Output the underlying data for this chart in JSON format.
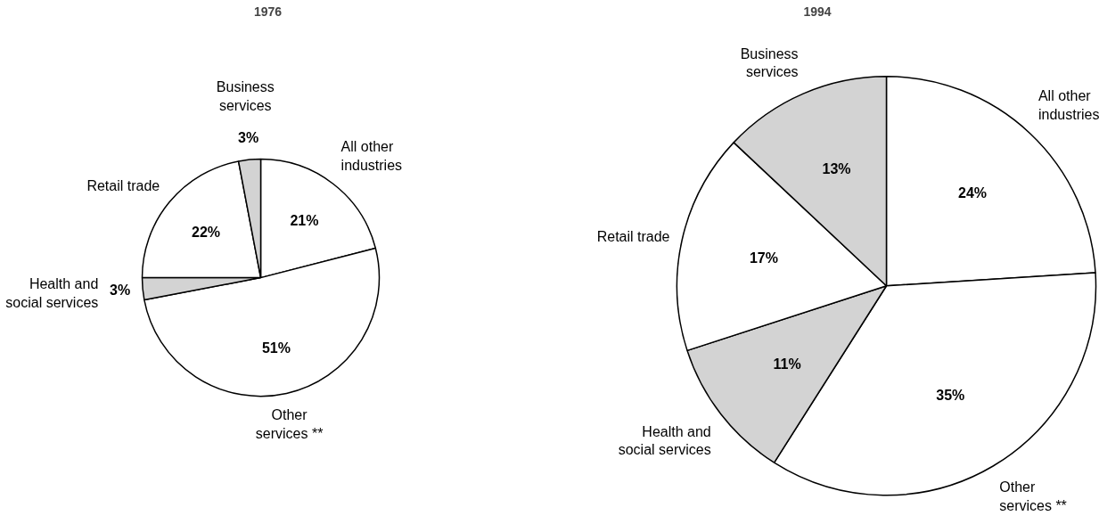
{
  "chart_data": [
    {
      "type": "pie",
      "title": "1976",
      "categories": [
        "All other industries",
        "Other services **",
        "Health and social services",
        "Retail trade",
        "Business services"
      ],
      "values": [
        21,
        51,
        3,
        22,
        3
      ],
      "colors": [
        "#ffffff",
        "#ffffff",
        "#d3d3d3",
        "#ffffff",
        "#d3d3d3"
      ],
      "value_labels": [
        "21%",
        "51%",
        "3%",
        "22%",
        "3%"
      ]
    },
    {
      "type": "pie",
      "title": "1994",
      "categories": [
        "All other industries",
        "Other services **",
        "Health and social services",
        "Retail trade",
        "Business services"
      ],
      "values": [
        24,
        35,
        11,
        17,
        13
      ],
      "colors": [
        "#ffffff",
        "#ffffff",
        "#d3d3d3",
        "#ffffff",
        "#d3d3d3"
      ],
      "value_labels": [
        "24%",
        "35%",
        "11%",
        "17%",
        "13%"
      ]
    }
  ]
}
